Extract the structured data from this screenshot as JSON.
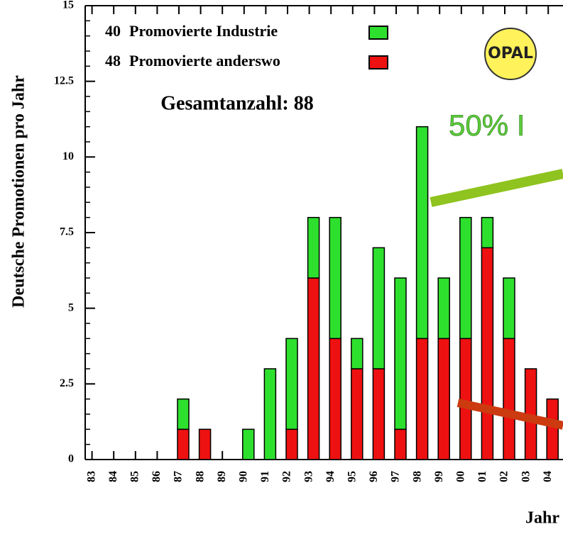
{
  "chart_data": {
    "type": "stacked_bar",
    "ylabel": "Deutsche Promotionen pro Jahr",
    "xlabel": "Jahr",
    "annotation": "50% I",
    "logo": "OPAL",
    "total_label": "Gesamtanzahl: 88",
    "categories": [
      "83",
      "84",
      "85",
      "86",
      "87",
      "88",
      "89",
      "90",
      "91",
      "92",
      "93",
      "94",
      "95",
      "96",
      "97",
      "98",
      "99",
      "00",
      "01",
      "02",
      "03",
      "04"
    ],
    "series": [
      {
        "name": "Promovierte Industrie",
        "total": 40,
        "color": "#2ee02e",
        "values": [
          0,
          0,
          0,
          0,
          1,
          0,
          0,
          1,
          3,
          3,
          2,
          4,
          1,
          4,
          5,
          7,
          2,
          4,
          1,
          2,
          0,
          0
        ]
      },
      {
        "name": "Promovierte anderswo",
        "total": 48,
        "color": "#ee1111",
        "values": [
          0,
          0,
          0,
          0,
          1,
          1,
          0,
          0,
          0,
          1,
          6,
          4,
          3,
          3,
          1,
          4,
          4,
          4,
          7,
          4,
          3,
          2
        ]
      }
    ],
    "stack_order": [
      1,
      0
    ],
    "ylim": [
      0,
      15
    ],
    "yticks": [
      0,
      2.5,
      5,
      7.5,
      10,
      12.5,
      15
    ]
  }
}
